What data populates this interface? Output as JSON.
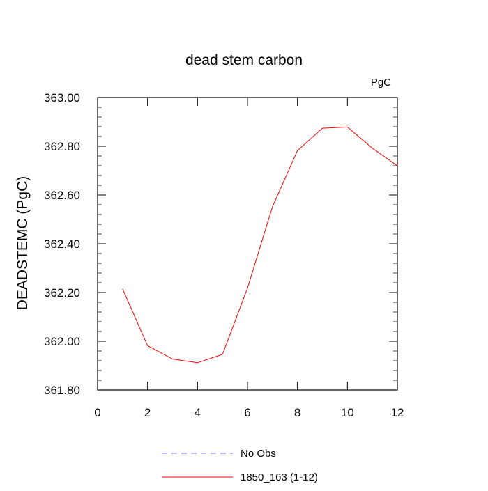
{
  "chart_data": {
    "type": "line",
    "title": "dead stem carbon",
    "units_label": "PgC",
    "ylabel": "DEADSTEMC  (PgC)",
    "xlabel": "",
    "xlim": [
      0,
      12
    ],
    "ylim": [
      361.8,
      363.0
    ],
    "xticks": [
      0,
      2,
      4,
      6,
      8,
      10,
      12
    ],
    "xtick_labels": [
      "0",
      "2",
      "4",
      "6",
      "8",
      "10",
      "12"
    ],
    "yticks": [
      361.8,
      362.0,
      362.2,
      362.4,
      362.6,
      362.8,
      363.0
    ],
    "ytick_labels": [
      "361.80",
      "362.00",
      "362.20",
      "362.40",
      "362.60",
      "362.80",
      "363.00"
    ],
    "grid": false,
    "legend_position": "bottom",
    "series": [
      {
        "name": "No Obs",
        "color": "#7777ff",
        "dashed": true,
        "x": [],
        "y": []
      },
      {
        "name": "1850_163 (1-12)",
        "color": "#ff0000",
        "dashed": false,
        "x": [
          1,
          2,
          3,
          4,
          5,
          6,
          7,
          8,
          9,
          10,
          11,
          12
        ],
        "y": [
          362.215,
          361.982,
          361.927,
          361.912,
          361.946,
          362.218,
          362.552,
          362.782,
          362.874,
          362.879,
          362.792,
          362.72
        ]
      }
    ]
  }
}
